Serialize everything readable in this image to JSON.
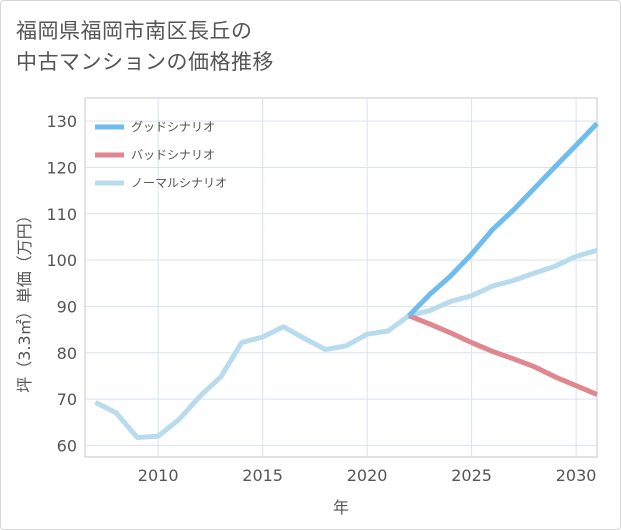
{
  "title_lines": [
    "福岡県福岡市南区長丘の",
    "中古マンションの価格推移"
  ],
  "chart_data": {
    "type": "line",
    "title": "福岡県福岡市南区長丘の中古マンションの価格推移",
    "xlabel": "年",
    "ylabel": "坪（3.3㎡）単価（万円）",
    "xlim": [
      2006.5,
      2031
    ],
    "ylim": [
      57.5,
      135
    ],
    "xticks": [
      2010,
      2015,
      2020,
      2025,
      2030
    ],
    "yticks": [
      60,
      70,
      80,
      90,
      100,
      110,
      120,
      130
    ],
    "grid": true,
    "legend_position": "top-left",
    "series": [
      {
        "name": "グッドシナリオ",
        "color": "#6fbcee",
        "x": [
          2022,
          2023,
          2024,
          2025,
          2026,
          2027,
          2028,
          2029,
          2030,
          2031
        ],
        "values": [
          88,
          92.6,
          96.6,
          101.3,
          106.6,
          110.8,
          115.5,
          120.2,
          124.8,
          129.5
        ]
      },
      {
        "name": "バッドシナリオ",
        "color": "#e0868f",
        "x": [
          2022,
          2023,
          2024,
          2025,
          2026,
          2027,
          2028,
          2029,
          2030,
          2031
        ],
        "values": [
          88,
          86.2,
          84.3,
          82.2,
          80.3,
          78.7,
          77,
          74.8,
          72.9,
          71
        ]
      },
      {
        "name": "ノーマルシナリオ",
        "color": "#b8dcee",
        "x": [
          2007,
          2008,
          2009,
          2010,
          2011,
          2012,
          2013,
          2014,
          2015,
          2016,
          2017,
          2018,
          2019,
          2020,
          2021,
          2022,
          2023,
          2024,
          2025,
          2026,
          2027,
          2028,
          2029,
          2030,
          2031
        ],
        "values": [
          69.3,
          67,
          61.7,
          62,
          65.6,
          70.6,
          74.8,
          82.2,
          83.4,
          85.6,
          83.1,
          80.7,
          81.5,
          84,
          84.7,
          88,
          89.1,
          91.1,
          92.3,
          94.4,
          95.6,
          97.2,
          98.7,
          100.8,
          102.1
        ]
      }
    ]
  }
}
